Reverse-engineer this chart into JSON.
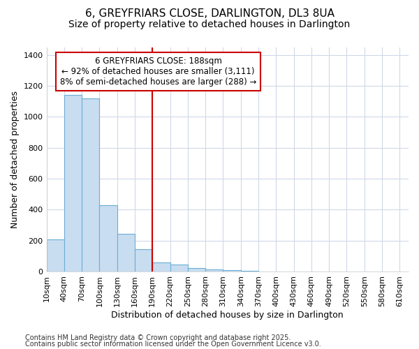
{
  "title1": "6, GREYFRIARS CLOSE, DARLINGTON, DL3 8UA",
  "title2": "Size of property relative to detached houses in Darlington",
  "xlabel": "Distribution of detached houses by size in Darlington",
  "ylabel": "Number of detached properties",
  "footnote1": "Contains HM Land Registry data © Crown copyright and database right 2025.",
  "footnote2": "Contains public sector information licensed under the Open Government Licence v3.0.",
  "bin_starts": [
    10,
    40,
    70,
    100,
    130,
    160,
    190,
    220,
    250,
    280,
    310,
    340,
    370,
    400,
    430,
    460,
    490,
    520,
    550,
    580
  ],
  "bar_heights": [
    210,
    1140,
    1120,
    430,
    245,
    145,
    60,
    45,
    25,
    15,
    10,
    5,
    0,
    0,
    0,
    0,
    0,
    0,
    0,
    0
  ],
  "bin_width": 30,
  "bar_color": "#c9ddf0",
  "bar_edgecolor": "#6aaed6",
  "vline_x": 190,
  "vline_color": "#cc0000",
  "annotation_text": "6 GREYFRIARS CLOSE: 188sqm\n← 92% of detached houses are smaller (3,111)\n8% of semi-detached houses are larger (288) →",
  "annotation_box_color": "#cc0000",
  "ylim": [
    0,
    1450
  ],
  "yticks": [
    0,
    200,
    400,
    600,
    800,
    1000,
    1200,
    1400
  ],
  "xlim_left": 10,
  "xlim_right": 625,
  "bg_color": "#ffffff",
  "plot_bg_color": "#ffffff",
  "grid_color": "#d0d8e8",
  "title1_fontsize": 11,
  "title2_fontsize": 10,
  "xlabel_fontsize": 9,
  "ylabel_fontsize": 9,
  "tick_fontsize": 8,
  "annotation_fontsize": 8.5,
  "footnote_fontsize": 7
}
